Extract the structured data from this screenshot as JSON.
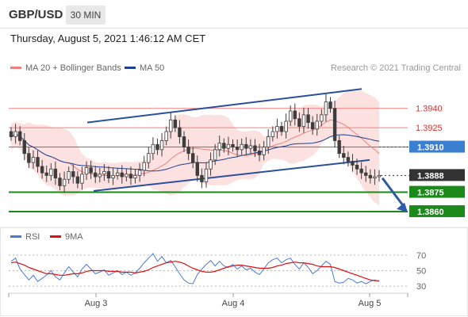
{
  "header": {
    "symbol": "GBP/USD",
    "timeframe": "30 MIN",
    "datetime": "Thursday, August 5, 2021 1:46:12 AM CET"
  },
  "legend": {
    "ma20_label": "MA 20 + Bollinger Bands",
    "ma50_label": "MA 50",
    "copyright": "Research © 2021 Trading Central"
  },
  "rsi_legend": {
    "rsi_label": "RSI",
    "ma_label": "9MA"
  },
  "colors": {
    "resistance": "#f08080",
    "resistance_text": "#e03030",
    "current": "#3a7fd0",
    "support": "#1b8a1b",
    "last": "#333333",
    "ma20": "#f08080",
    "ma50": "#1f3f8f",
    "rsi": "#4a78d8",
    "rsi_ma": "#e01010",
    "band_fill": "#fbd7d7",
    "candle": "#3d3d3d",
    "channel": "#2c4f99",
    "arrow": "#2c5aa8"
  },
  "chart_data": [
    {
      "type": "candlestick",
      "title": "",
      "x_ticks": [
        "Aug 3",
        "Aug 4",
        "Aug 5"
      ],
      "price_levels": [
        {
          "label": "1.3940",
          "value": 1.394,
          "kind": "resistance"
        },
        {
          "label": "1.3925",
          "value": 1.3925,
          "kind": "resistance"
        },
        {
          "label": "1.3910",
          "value": 1.391,
          "kind": "current"
        },
        {
          "label": "1.3888",
          "value": 1.3888,
          "kind": "last"
        },
        {
          "label": "1.3875",
          "value": 1.3875,
          "kind": "support"
        },
        {
          "label": "1.3860",
          "value": 1.386,
          "kind": "support"
        }
      ],
      "series": [
        {
          "name": "MA 20 + Bollinger Bands"
        },
        {
          "name": "MA 50"
        }
      ],
      "close": [
        1.3918,
        1.3922,
        1.3915,
        1.3905,
        1.3898,
        1.3902,
        1.3895,
        1.389,
        1.3888,
        1.3893,
        1.3886,
        1.388,
        1.3885,
        1.3891,
        1.3887,
        1.3882,
        1.3889,
        1.3894,
        1.389,
        1.3887,
        1.3889,
        1.3891,
        1.3886,
        1.3888,
        1.389,
        1.3887,
        1.3889,
        1.3886,
        1.3888,
        1.3892,
        1.3898,
        1.3905,
        1.3912,
        1.3908,
        1.3915,
        1.3922,
        1.3931,
        1.3925,
        1.3918,
        1.391,
        1.3905,
        1.3898,
        1.3888,
        1.3883,
        1.3893,
        1.39,
        1.3908,
        1.3913,
        1.3909,
        1.3912,
        1.391,
        1.3908,
        1.3912,
        1.3909,
        1.3911,
        1.3907,
        1.3904,
        1.391,
        1.3918,
        1.3922,
        1.3926,
        1.3922,
        1.393,
        1.3938,
        1.3932,
        1.3926,
        1.3935,
        1.3929,
        1.3924,
        1.393,
        1.3935,
        1.3945,
        1.394,
        1.3915,
        1.3905,
        1.3902,
        1.3899,
        1.3896,
        1.3893,
        1.389,
        1.3888,
        1.3886,
        1.3887,
        1.3888
      ],
      "ylim": [
        1.3852,
        1.3965
      ]
    },
    {
      "type": "line",
      "title": "",
      "series": [
        {
          "name": "RSI",
          "values": [
            62,
            66,
            52,
            45,
            38,
            44,
            36,
            40,
            44,
            50,
            42,
            38,
            47,
            55,
            48,
            42,
            52,
            58,
            52,
            46,
            48,
            51,
            44,
            47,
            50,
            45,
            48,
            44,
            47,
            53,
            60,
            66,
            72,
            62,
            68,
            60,
            63,
            55,
            46,
            38,
            34,
            33,
            45,
            52,
            58,
            63,
            56,
            62,
            56,
            54,
            58,
            52,
            56,
            51,
            53,
            48,
            45,
            52,
            60,
            64,
            66,
            60,
            64,
            66,
            58,
            52,
            60,
            54,
            46,
            50,
            56,
            62,
            58,
            36,
            34,
            35,
            40,
            38,
            34,
            36,
            33,
            36,
            38,
            36
          ]
        },
        {
          "name": "9MA",
          "values": [
            60,
            61,
            59,
            57,
            54,
            52,
            50,
            48,
            46,
            46,
            45,
            44,
            44,
            45,
            46,
            46,
            47,
            49,
            50,
            50,
            50,
            50,
            49,
            49,
            49,
            48,
            48,
            48,
            47,
            48,
            49,
            51,
            54,
            56,
            58,
            60,
            61,
            62,
            61,
            59,
            56,
            53,
            51,
            49,
            48,
            48,
            49,
            51,
            53,
            55,
            56,
            57,
            57,
            56,
            55,
            54,
            53,
            53,
            53,
            54,
            56,
            57,
            59,
            60,
            61,
            60,
            60,
            59,
            58,
            56,
            55,
            55,
            55,
            54,
            52,
            50,
            48,
            46,
            44,
            42,
            40,
            38,
            37,
            37
          ]
        }
      ],
      "y_ticks": [
        70,
        50,
        30
      ],
      "ylim": [
        25,
        80
      ]
    }
  ]
}
